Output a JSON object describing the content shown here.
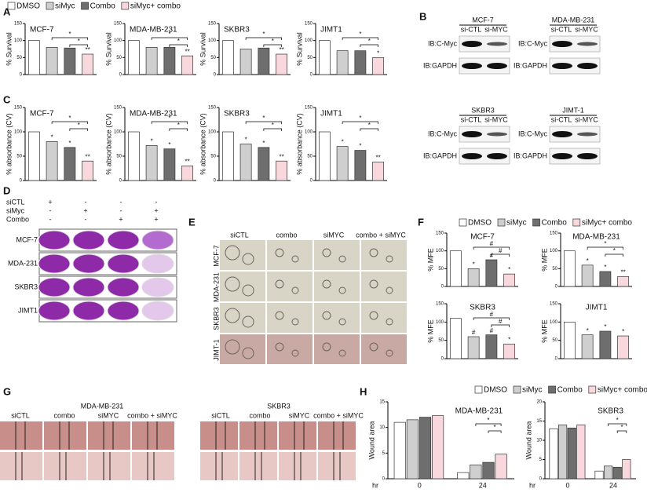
{
  "panel_labels": [
    "A",
    "B",
    "C",
    "D",
    "E",
    "F",
    "G",
    "H"
  ],
  "legends": [
    {
      "items": [
        {
          "name": "DMSO",
          "color": "#ffffff"
        },
        {
          "name": "siMyc",
          "color": "#cfcfcf"
        },
        {
          "name": "Combo",
          "color": "#6e6e6e"
        },
        {
          "name": "siMyc+ combo",
          "color": "#f8d8dc"
        }
      ]
    },
    {
      "items": [
        {
          "name": "DMSO",
          "color": "#ffffff"
        },
        {
          "name": "siMyc",
          "color": "#cfcfcf"
        },
        {
          "name": "Combo",
          "color": "#6e6e6e"
        },
        {
          "name": "siMyc+ combo",
          "color": "#f8d8dc"
        }
      ]
    },
    {
      "items": [
        {
          "name": "DMSO",
          "color": "#ffffff"
        },
        {
          "name": "siMyc",
          "color": "#cfcfcf"
        },
        {
          "name": "Combo",
          "color": "#6e6e6e"
        },
        {
          "name": "siMyc+ combo",
          "color": "#f8d8dc"
        }
      ]
    }
  ],
  "blots": [
    {
      "title": "MCF-7",
      "lanes": [
        "si-CTL",
        "si-MYC"
      ],
      "rows": [
        "IB:C-Myc",
        "IB:GAPDH"
      ]
    },
    {
      "title": "MDA-MB-231",
      "lanes": [
        "si-CTL",
        "si-MYC"
      ],
      "rows": [
        "IB:C-Myc",
        "IB:GAPDH"
      ]
    },
    {
      "title": "SKBR3",
      "lanes": [
        "si-CTL",
        "si-MYC"
      ],
      "rows": [
        "IB:C-Myc",
        "IB:GAPDH"
      ]
    },
    {
      "title": "JIMT-1",
      "lanes": [
        "si-CTL",
        "si-MYC"
      ],
      "rows": [
        "IB:C-Myc",
        "IB:GAPDH"
      ]
    }
  ],
  "plates": {
    "conditions": [
      "siCTL",
      "siMyc",
      "Combo"
    ],
    "signs": [
      [
        "+",
        "-",
        "-",
        "-"
      ],
      [
        "-",
        "+",
        "-",
        "+"
      ],
      [
        "-",
        "-",
        "+",
        "+"
      ]
    ],
    "rows": [
      "MCF-7",
      "MDA-231",
      "SKBR3",
      "JIMT1"
    ]
  },
  "spheres": {
    "columns": [
      "siCTL",
      "combo",
      "siMYC",
      "combo + siMYC"
    ],
    "rows": [
      "MCF-7",
      "MDA-231",
      "SKBR3",
      "JIMT-1"
    ]
  },
  "wound": {
    "groups": [
      {
        "title": "MDA-MB-231",
        "columns": [
          "siCTL",
          "combo",
          "siMYC",
          "combo + siMYC"
        ]
      },
      {
        "title": "SKBR3",
        "columns": [
          "siCTL",
          "combo",
          "siMYC",
          "combo + siMYC"
        ]
      }
    ]
  },
  "chart_data": [
    {
      "type": "bar",
      "title": "MCF-7",
      "ylabel": "% Survival",
      "values": [
        100,
        80,
        78,
        60
      ],
      "ylim": [
        0,
        150
      ],
      "yticks": [
        0,
        50,
        100,
        150
      ],
      "stars": [
        "*",
        "*"
      ],
      "bar_marks": [
        null,
        null,
        null,
        "**"
      ]
    },
    {
      "type": "bar",
      "title": "MDA-MB-231",
      "ylabel": "% Survival",
      "values": [
        100,
        80,
        80,
        55
      ],
      "ylim": [
        0,
        150
      ],
      "yticks": [
        0,
        50,
        100,
        150
      ],
      "stars": [
        "*",
        "*"
      ],
      "bar_marks": [
        null,
        null,
        null,
        "**"
      ]
    },
    {
      "type": "bar",
      "title": "SKBR3",
      "ylabel": "% Survival",
      "values": [
        100,
        75,
        78,
        60
      ],
      "ylim": [
        0,
        150
      ],
      "yticks": [
        0,
        50,
        100,
        150
      ],
      "stars": [
        "*",
        "*"
      ],
      "bar_marks": [
        null,
        null,
        null,
        "**"
      ]
    },
    {
      "type": "bar",
      "title": "JIMT1",
      "ylabel": "% Survival",
      "values": [
        100,
        70,
        70,
        50
      ],
      "ylim": [
        0,
        150
      ],
      "yticks": [
        0,
        50,
        100,
        150
      ],
      "stars": [
        "*",
        "*"
      ],
      "bar_marks": [
        null,
        null,
        null,
        "*"
      ]
    },
    {
      "type": "bar",
      "title": "MCF-7",
      "ylabel": "% absorbance (CV)",
      "values": [
        100,
        80,
        68,
        40
      ],
      "ylim": [
        0,
        150
      ],
      "yticks": [
        0,
        50,
        100,
        150
      ],
      "stars": [
        "*",
        "*"
      ],
      "bar_marks": [
        null,
        "*",
        "*",
        "**"
      ]
    },
    {
      "type": "bar",
      "title": "MDA-MB-231",
      "ylabel": "% absorbance (CV)",
      "values": [
        100,
        72,
        65,
        30
      ],
      "ylim": [
        0,
        150
      ],
      "yticks": [
        0,
        50,
        100,
        150
      ],
      "stars": [
        "*",
        "*"
      ],
      "bar_marks": [
        null,
        "*",
        "*",
        "**"
      ]
    },
    {
      "type": "bar",
      "title": "SKBR3",
      "ylabel": "% absorbance (CV)",
      "values": [
        100,
        75,
        68,
        40
      ],
      "ylim": [
        0,
        150
      ],
      "yticks": [
        0,
        50,
        100,
        150
      ],
      "stars": [
        "*",
        "*"
      ],
      "bar_marks": [
        null,
        "*",
        "*",
        "**"
      ]
    },
    {
      "type": "bar",
      "title": "JIMT1",
      "ylabel": "% absorbance (CV)",
      "values": [
        100,
        70,
        62,
        38
      ],
      "ylim": [
        0,
        150
      ],
      "yticks": [
        0,
        50,
        100,
        150
      ],
      "stars": [
        "*",
        "*"
      ],
      "bar_marks": [
        null,
        "*",
        "*",
        "**"
      ]
    },
    {
      "type": "bar",
      "title": "MCF-7",
      "ylabel": "% MFE",
      "values": [
        100,
        50,
        75,
        35
      ],
      "ylim": [
        0,
        150
      ],
      "yticks": [
        0,
        50,
        100,
        150
      ],
      "stars": [
        "#",
        "#"
      ],
      "bar_marks": [
        null,
        "*",
        "#",
        "*"
      ]
    },
    {
      "type": "bar",
      "title": "MDA-MB-231",
      "ylabel": "% MFE",
      "values": [
        100,
        60,
        42,
        28
      ],
      "ylim": [
        0,
        150
      ],
      "yticks": [
        0,
        50,
        100,
        150
      ],
      "stars": [
        "*",
        "*"
      ],
      "bar_marks": [
        null,
        "*",
        "*",
        "**"
      ]
    },
    {
      "type": "bar",
      "title": "SKBR3",
      "ylabel": "% MFE",
      "values": [
        110,
        60,
        65,
        40
      ],
      "ylim": [
        0,
        150
      ],
      "yticks": [
        0,
        50,
        100,
        150
      ],
      "stars": [
        "#",
        "#"
      ],
      "bar_marks": [
        null,
        "#",
        "#",
        "*"
      ]
    },
    {
      "type": "bar",
      "title": "JIMT1",
      "ylabel": "% MFE",
      "values": [
        100,
        65,
        75,
        62
      ],
      "ylim": [
        0,
        150
      ],
      "yticks": [
        0,
        50,
        100,
        150
      ],
      "stars": [],
      "bar_marks": [
        null,
        "*",
        "*",
        "*"
      ]
    },
    {
      "type": "grouped",
      "title": "MDA-MB-231",
      "ylabel": "Wound area",
      "xlabel": "hr",
      "categories": [
        "0",
        "24"
      ],
      "series": [
        {
          "values": [
            11,
            1.2
          ]
        },
        {
          "values": [
            11.5,
            2.7
          ]
        },
        {
          "values": [
            12,
            3.2
          ]
        },
        {
          "values": [
            12.3,
            4.8
          ]
        }
      ],
      "ylim": [
        0,
        15
      ],
      "yticks": [
        0,
        5,
        10,
        15
      ],
      "stars": [
        "*",
        "*"
      ]
    },
    {
      "type": "grouped",
      "title": "SKBR3",
      "ylabel": "Wound area",
      "xlabel": "hr",
      "categories": [
        "0",
        "24"
      ],
      "series": [
        {
          "values": [
            13,
            2
          ]
        },
        {
          "values": [
            14,
            3.3
          ]
        },
        {
          "values": [
            13.2,
            3
          ]
        },
        {
          "values": [
            14,
            5
          ]
        }
      ],
      "ylim": [
        0,
        20
      ],
      "yticks": [
        0,
        5,
        10,
        15,
        20
      ],
      "stars": [
        "*",
        "*"
      ]
    }
  ]
}
